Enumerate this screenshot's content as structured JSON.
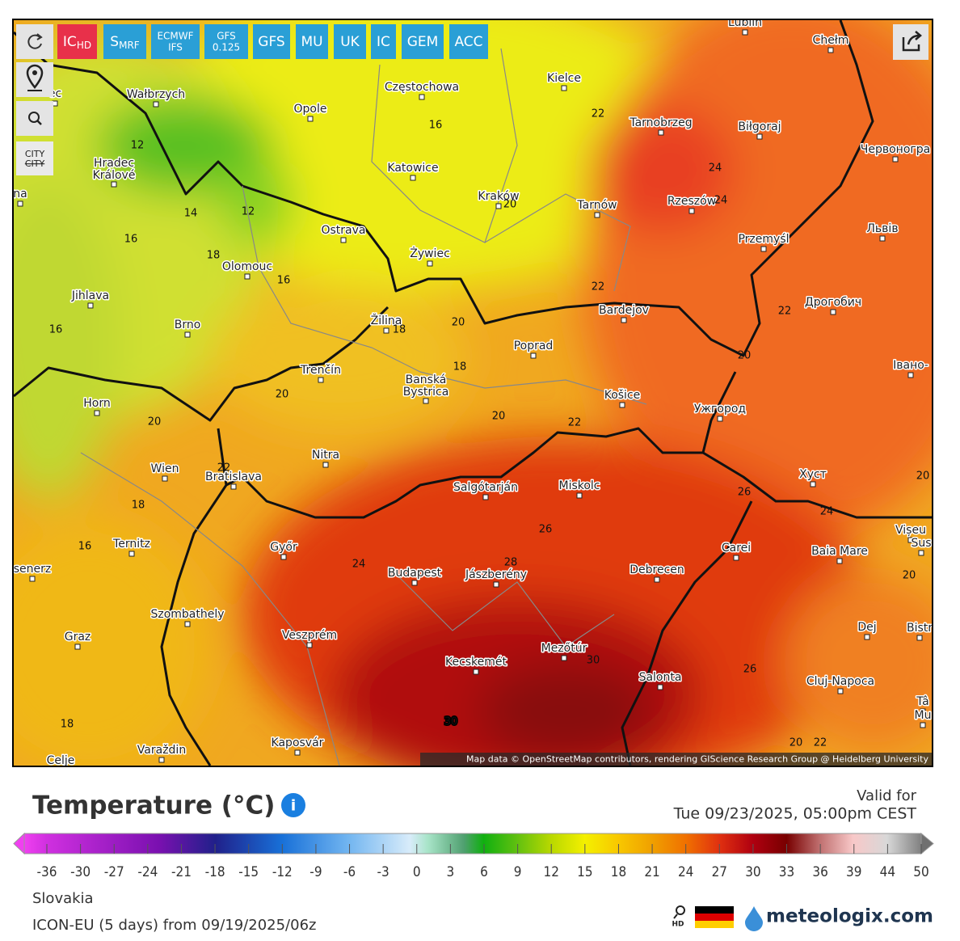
{
  "toolbar": {
    "buttons": [
      {
        "label": "IC",
        "sub": "HD"
      },
      {
        "label": "S",
        "sub": "MRF"
      },
      {
        "lines": [
          "ECMWF",
          "IFS"
        ]
      },
      {
        "lines": [
          "GFS",
          "0.125"
        ]
      },
      {
        "label": "GFS"
      },
      {
        "label": "MU"
      },
      {
        "label": "UK"
      },
      {
        "label": "IC"
      },
      {
        "label": "GEM"
      },
      {
        "label": "ACC"
      }
    ],
    "city_toggle": [
      "CITY",
      "CITY"
    ]
  },
  "map": {
    "cities": [
      "ec",
      "Wałbrzych",
      "Opole",
      "Częstochowa",
      "Kielce",
      "Lublin",
      "Chełm",
      "Hradec Králové",
      "Katowice",
      "Tarnobrzeg",
      "Biłgoraj",
      "Червоногра",
      "na",
      "Kraków",
      "Tarnów",
      "Rzeszów",
      "Ostrava",
      "Żywiec",
      "Przemyśl",
      "Львів",
      "Olomouc",
      "Jihlava",
      "Bardejov",
      "Дрогобич",
      "Brno",
      "Žilina",
      "Poprad",
      "Івано-",
      "Trenčín",
      "Banská Bystrica",
      "Košice",
      "Horn",
      "Ужгород",
      "Wien",
      "Bratislava",
      "Nitra",
      "Хуст",
      "Salgótarján",
      "Miskolc",
      "Ternitz",
      "Győr",
      "Carei",
      "Baia Mare",
      "Vișeu",
      "Sus",
      "senerz",
      "Budapest",
      "Jászberény",
      "Debrecen",
      "Szombathely",
      "Dej",
      "Bistr",
      "Veszprém",
      "Graz",
      "Mezőtúr",
      "Kecskemét",
      "Salonta",
      "Cluj-Napoca",
      "Tâ",
      "Mu",
      "Kaposvár",
      "Varaždin",
      "Celje"
    ],
    "contour_labels": [
      12,
      14,
      12,
      16,
      18,
      16,
      16,
      16,
      22,
      24,
      24,
      20,
      22,
      18,
      20,
      18,
      22,
      20,
      20,
      20,
      20,
      22,
      22,
      18,
      16,
      24,
      26,
      28,
      26,
      24,
      20,
      20,
      30,
      26,
      18,
      20,
      22,
      30
    ],
    "attribution": "Map data © OpenStreetMap contributors, rendering GIScience Research Group @ Heidelberg University"
  },
  "legend": {
    "title": "Temperature (°C)",
    "valid_label": "Valid for",
    "valid_time": "Tue 09/23/2025, 05:00pm CEST",
    "ticks": [
      -36,
      -30,
      -27,
      -24,
      -21,
      -18,
      -15,
      -12,
      -9,
      -6,
      -3,
      0,
      3,
      6,
      9,
      12,
      15,
      18,
      21,
      24,
      27,
      30,
      33,
      36,
      39,
      44,
      50
    ]
  },
  "footer": {
    "region": "Slovakia",
    "model": "ICON-EU (5 days) from 09/19/2025/06z",
    "hd": "HD",
    "brand": "meteologix.com"
  }
}
